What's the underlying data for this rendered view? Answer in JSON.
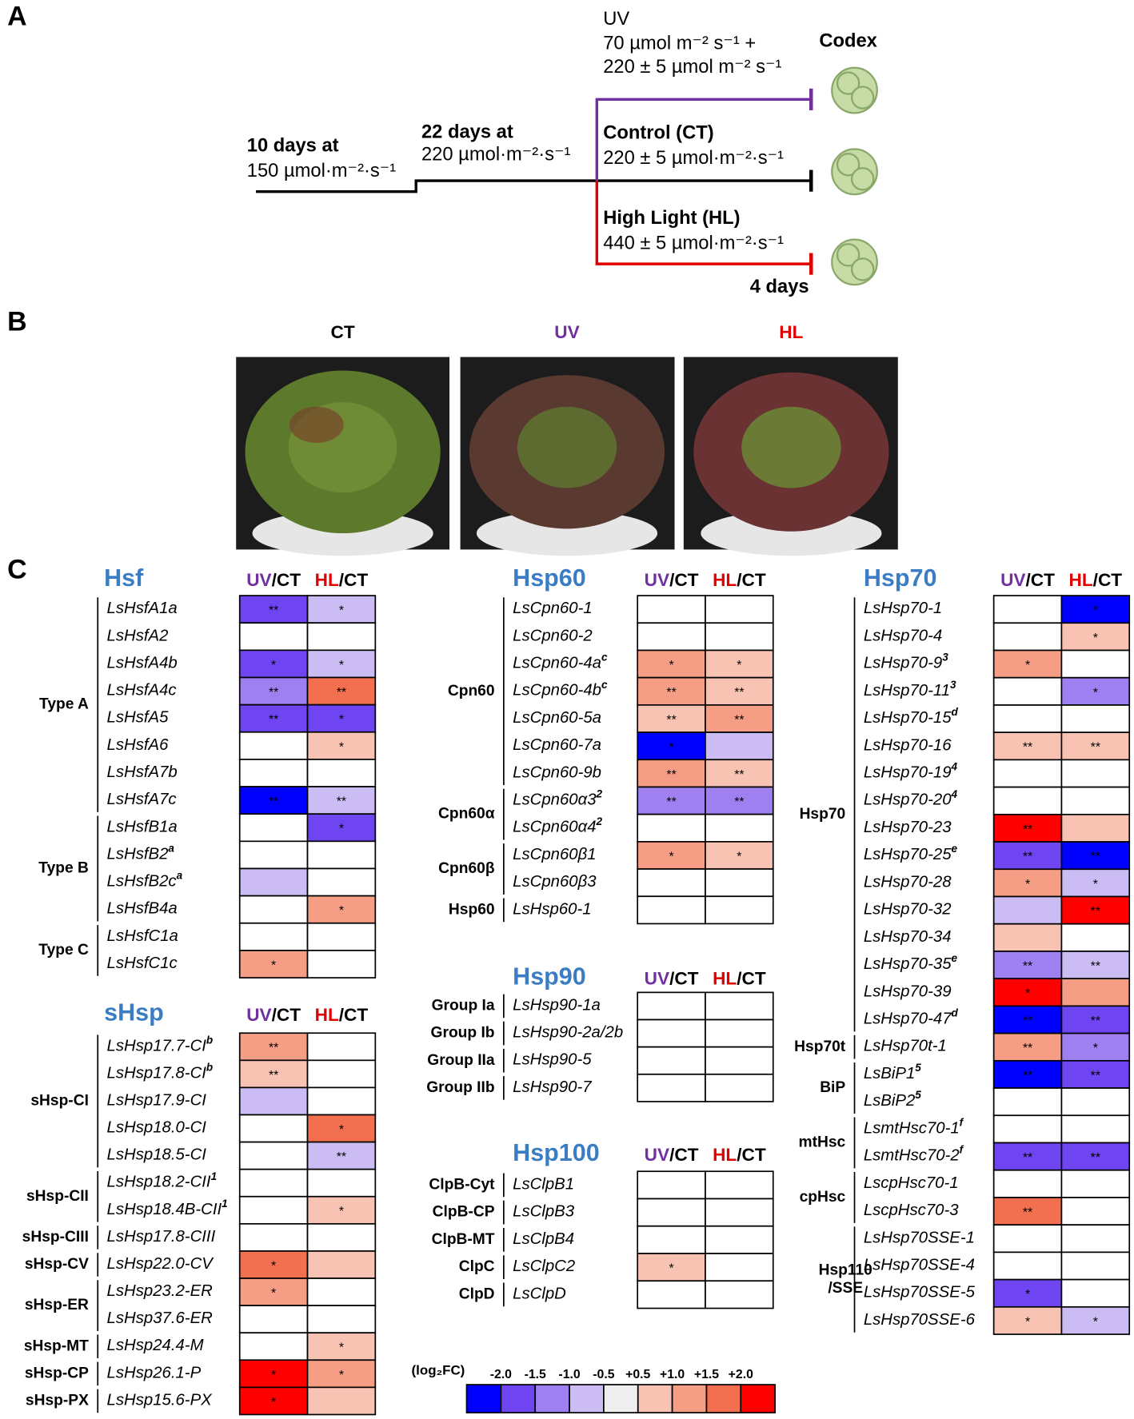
{
  "panel_a": {
    "letter": "A",
    "uv_title": "UV",
    "uv_line1": "70 µmol m⁻² s⁻¹ +",
    "uv_line2": "220 ± 5 µmol m⁻² s⁻¹",
    "codex": "Codex",
    "stage1_title": "10 days at",
    "stage1_value": "150 µmol·m⁻²·s⁻¹",
    "stage2_title": "22 days at",
    "stage2_value": "220 µmol·m⁻²·s⁻¹",
    "ct_title": "Control (CT)",
    "ct_value": "220 ± 5 µmol·m⁻²·s⁻¹",
    "hl_title": "High Light (HL)",
    "hl_value": "440 ± 5 µmol·m⁻²·s⁻¹",
    "duration": "4 days"
  },
  "panel_b": {
    "letter": "B",
    "labels": [
      "CT",
      "UV",
      "HL"
    ]
  },
  "panel_c": {
    "letter": "C",
    "uv": "UV",
    "hl": "HL",
    "ct_suffix": "/CT",
    "families": [
      {
        "name": "Hsf",
        "groups": [
          {
            "label": "Type A",
            "genes": [
              {
                "gene": "LsHsfA1a",
                "uv": -1.75,
                "uv_sig": "**",
                "hl": -0.75,
                "hl_sig": "*"
              },
              {
                "gene": "LsHsfA2",
                "uv": null,
                "hl": null
              },
              {
                "gene": "LsHsfA4b",
                "uv": -1.75,
                "uv_sig": "*",
                "hl": -0.75,
                "hl_sig": "*"
              },
              {
                "gene": "LsHsfA4c",
                "uv": -1.25,
                "uv_sig": "**",
                "hl": 1.75,
                "hl_sig": "**"
              },
              {
                "gene": "LsHsfA5",
                "uv": -1.75,
                "uv_sig": "**",
                "hl": -1.75,
                "hl_sig": "*"
              },
              {
                "gene": "LsHsfA6",
                "uv": null,
                "hl": 0.75,
                "hl_sig": "*"
              },
              {
                "gene": "LsHsfA7b",
                "uv": null,
                "hl": null
              },
              {
                "gene": "LsHsfA7c",
                "uv": -2.25,
                "uv_sig": "**",
                "hl": -0.75,
                "hl_sig": "**"
              }
            ]
          },
          {
            "label": "Type B",
            "genes": [
              {
                "gene": "LsHsfB1a",
                "uv": null,
                "hl": -1.75,
                "hl_sig": "*"
              },
              {
                "gene": "LsHsfB2",
                "sup": "a",
                "uv": null,
                "hl": null
              },
              {
                "gene": "LsHsfB2c",
                "sup": "a",
                "uv": -0.75,
                "hl": null
              },
              {
                "gene": "LsHsfB4a",
                "uv": null,
                "hl": 1.25,
                "hl_sig": "*"
              }
            ]
          },
          {
            "label": "Type C",
            "genes": [
              {
                "gene": "LsHsfC1a",
                "uv": null,
                "hl": null
              },
              {
                "gene": "LsHsfC1c",
                "uv": 1.25,
                "uv_sig": "*",
                "hl": null
              }
            ]
          }
        ]
      },
      {
        "name": "sHsp",
        "groups": [
          {
            "label": "sHsp-CI",
            "genes": [
              {
                "gene": "LsHsp17.7-CI",
                "sup": "b",
                "uv": 1.25,
                "uv_sig": "**",
                "hl": null
              },
              {
                "gene": "LsHsp17.8-CI",
                "sup": "b",
                "uv": 0.75,
                "uv_sig": "**",
                "hl": null
              },
              {
                "gene": "LsHsp17.9-CI",
                "uv": -0.75,
                "hl": null
              },
              {
                "gene": "LsHsp18.0-CI",
                "uv": null,
                "hl": 1.75,
                "hl_sig": "*"
              },
              {
                "gene": "LsHsp18.5-CI",
                "uv": null,
                "hl": -0.75,
                "hl_sig": "**"
              }
            ]
          },
          {
            "label": "sHsp-CII",
            "genes": [
              {
                "gene": "LsHsp18.2-CII",
                "sup": "1",
                "uv": null,
                "hl": null
              },
              {
                "gene": "LsHsp18.4B-CII",
                "sup": "1",
                "uv": null,
                "hl": 0.75,
                "hl_sig": "*"
              }
            ]
          },
          {
            "label": "sHsp-CIII",
            "genes": [
              {
                "gene": "LsHsp17.8-CIII",
                "uv": null,
                "hl": null
              }
            ]
          },
          {
            "label": "sHsp-CV",
            "genes": [
              {
                "gene": "LsHsp22.0-CV",
                "uv": 1.75,
                "uv_sig": "*",
                "hl": 0.75
              }
            ]
          },
          {
            "label": "sHsp-ER",
            "genes": [
              {
                "gene": "LsHsp23.2-ER",
                "uv": 1.25,
                "uv_sig": "*",
                "hl": null
              },
              {
                "gene": "LsHsp37.6-ER",
                "uv": null,
                "hl": null
              }
            ]
          },
          {
            "label": "sHsp-MT",
            "genes": [
              {
                "gene": "LsHsp24.4-M",
                "uv": null,
                "hl": 0.75,
                "hl_sig": "*"
              }
            ]
          },
          {
            "label": "sHsp-CP",
            "genes": [
              {
                "gene": "LsHsp26.1-P",
                "uv": 2.25,
                "uv_sig": "*",
                "hl": 1.25,
                "hl_sig": "*"
              }
            ]
          },
          {
            "label": "sHsp-PX",
            "genes": [
              {
                "gene": "LsHsp15.6-PX",
                "uv": 2.25,
                "uv_sig": "*",
                "hl": 0.75
              }
            ]
          }
        ]
      },
      {
        "name": "Hsp60",
        "groups": [
          {
            "label": "Cpn60",
            "genes": [
              {
                "gene": "LsCpn60-1",
                "uv": null,
                "hl": null
              },
              {
                "gene": "LsCpn60-2",
                "uv": null,
                "hl": null
              },
              {
                "gene": "LsCpn60-4a",
                "sup": "c",
                "uv": 1.25,
                "uv_sig": "*",
                "hl": 0.75,
                "hl_sig": "*"
              },
              {
                "gene": "LsCpn60-4b",
                "sup": "c",
                "uv": 1.25,
                "uv_sig": "**",
                "hl": 0.75,
                "hl_sig": "**"
              },
              {
                "gene": "LsCpn60-5a",
                "uv": 0.75,
                "uv_sig": "**",
                "hl": 1.25,
                "hl_sig": "**"
              },
              {
                "gene": "LsCpn60-7a",
                "uv": -2.25,
                "uv_sig": "*",
                "hl": -0.75
              },
              {
                "gene": "LsCpn60-9b",
                "uv": 1.25,
                "uv_sig": "**",
                "hl": 0.75,
                "hl_sig": "**"
              }
            ]
          },
          {
            "label": "Cpn60α",
            "genes": [
              {
                "gene": "LsCpn60α3",
                "sup": "2",
                "uv": -1.25,
                "uv_sig": "**",
                "hl": -1.25,
                "hl_sig": "**"
              },
              {
                "gene": "LsCpn60α4",
                "sup": "2",
                "uv": null,
                "hl": null
              }
            ]
          },
          {
            "label": "Cpn60β",
            "genes": [
              {
                "gene": "LsCpn60β1",
                "uv": 1.25,
                "uv_sig": "*",
                "hl": 0.75,
                "hl_sig": "*"
              },
              {
                "gene": "LsCpn60β3",
                "uv": null,
                "hl": null
              }
            ]
          },
          {
            "label": "Hsp60",
            "genes": [
              {
                "gene": "LsHsp60-1",
                "uv": null,
                "hl": null
              }
            ]
          }
        ]
      },
      {
        "name": "Hsp90",
        "groups": [
          {
            "label": "Group Ia",
            "genes": [
              {
                "gene": "LsHsp90-1a",
                "uv": null,
                "hl": null
              }
            ]
          },
          {
            "label": "Group Ib",
            "genes": [
              {
                "gene": "LsHsp90-2a/2b",
                "uv": null,
                "hl": null
              }
            ]
          },
          {
            "label": "Group IIa",
            "genes": [
              {
                "gene": "LsHsp90-5",
                "uv": null,
                "hl": null
              }
            ]
          },
          {
            "label": "Group IIb",
            "genes": [
              {
                "gene": "LsHsp90-7",
                "uv": null,
                "hl": null
              }
            ]
          }
        ]
      },
      {
        "name": "Hsp100",
        "groups": [
          {
            "label": "ClpB-Cyt",
            "genes": [
              {
                "gene": "LsClpB1",
                "uv": null,
                "hl": null
              }
            ]
          },
          {
            "label": "ClpB-CP",
            "genes": [
              {
                "gene": "LsClpB3",
                "uv": null,
                "hl": null
              }
            ]
          },
          {
            "label": "ClpB-MT",
            "genes": [
              {
                "gene": "LsClpB4",
                "uv": null,
                "hl": null
              }
            ]
          },
          {
            "label": "ClpC",
            "genes": [
              {
                "gene": "LsClpC2",
                "uv": 0.75,
                "uv_sig": "*",
                "hl": null
              }
            ]
          },
          {
            "label": "ClpD",
            "genes": [
              {
                "gene": "LsClpD",
                "uv": null,
                "hl": null
              }
            ]
          }
        ]
      },
      {
        "name": "Hsp70",
        "groups": [
          {
            "label": "Hsp70",
            "genes": [
              {
                "gene": "LsHsp70-1",
                "uv": null,
                "hl": -2.25,
                "hl_sig": "*"
              },
              {
                "gene": "LsHsp70-4",
                "uv": null,
                "hl": 0.75,
                "hl_sig": "*"
              },
              {
                "gene": "LsHsp70-9",
                "sup": "3",
                "uv": 1.25,
                "uv_sig": "*",
                "hl": null
              },
              {
                "gene": "LsHsp70-11",
                "sup": "3",
                "uv": null,
                "hl": -1.25,
                "hl_sig": "*"
              },
              {
                "gene": "LsHsp70-15",
                "sup": "d",
                "uv": null,
                "hl": null
              },
              {
                "gene": "LsHsp70-16",
                "uv": 0.75,
                "uv_sig": "**",
                "hl": 0.75,
                "hl_sig": "**"
              },
              {
                "gene": "LsHsp70-19",
                "sup": "4",
                "uv": null,
                "hl": null
              },
              {
                "gene": "LsHsp70-20",
                "sup": "4",
                "uv": null,
                "hl": null
              },
              {
                "gene": "LsHsp70-23",
                "uv": 2.25,
                "uv_sig": "**",
                "hl": 0.75
              },
              {
                "gene": "LsHsp70-25",
                "sup": "e",
                "uv": -1.75,
                "uv_sig": "**",
                "hl": -2.25,
                "hl_sig": "**"
              },
              {
                "gene": "LsHsp70-28",
                "uv": 1.25,
                "uv_sig": "*",
                "hl": -0.75,
                "hl_sig": "*"
              },
              {
                "gene": "LsHsp70-32",
                "uv": -0.75,
                "hl": 2.25,
                "hl_sig": "**"
              },
              {
                "gene": "LsHsp70-34",
                "uv": 0.75,
                "hl": null
              },
              {
                "gene": "LsHsp70-35",
                "sup": "e",
                "uv": -1.25,
                "uv_sig": "**",
                "hl": -0.75,
                "hl_sig": "**"
              },
              {
                "gene": "LsHsp70-39",
                "uv": 2.25,
                "uv_sig": "*",
                "hl": 1.25
              },
              {
                "gene": "LsHsp70-47",
                "sup": "d",
                "uv": -2.25,
                "uv_sig": "**",
                "hl": -1.75,
                "hl_sig": "**"
              }
            ]
          },
          {
            "label": "Hsp70t",
            "genes": [
              {
                "gene": "LsHsp70t-1",
                "uv": 1.25,
                "uv_sig": "**",
                "hl": -1.25,
                "hl_sig": "*"
              }
            ]
          },
          {
            "label": "BiP",
            "genes": [
              {
                "gene": "LsBiP1",
                "sup": "5",
                "uv": -2.25,
                "uv_sig": "**",
                "hl": -1.75,
                "hl_sig": "**"
              },
              {
                "gene": "LsBiP2",
                "sup": "5",
                "uv": null,
                "hl": null
              }
            ]
          },
          {
            "label": "mtHsc",
            "genes": [
              {
                "gene": "LsmtHsc70-1",
                "sup": "f",
                "uv": null,
                "hl": null
              },
              {
                "gene": "LsmtHsc70-2",
                "sup": "f",
                "uv": -1.75,
                "uv_sig": "**",
                "hl": -1.75,
                "hl_sig": "**"
              }
            ]
          },
          {
            "label": "cpHsc",
            "genes": [
              {
                "gene": "LscpHsc70-1",
                "uv": null,
                "hl": null
              },
              {
                "gene": "LscpHsc70-3",
                "uv": 1.75,
                "uv_sig": "**",
                "hl": null
              }
            ]
          },
          {
            "label": [
              "Hsp110",
              "/SSE"
            ],
            "genes": [
              {
                "gene": "LsHsp70SSE-1",
                "uv": null,
                "hl": null
              },
              {
                "gene": "LsHsp70SSE-4",
                "uv": null,
                "hl": null
              },
              {
                "gene": "LsHsp70SSE-5",
                "uv": -1.75,
                "uv_sig": "*",
                "hl": null
              },
              {
                "gene": "LsHsp70SSE-6",
                "uv": 0.75,
                "uv_sig": "*",
                "hl": -0.75,
                "hl_sig": "*"
              }
            ]
          }
        ]
      }
    ],
    "legend": {
      "label": "(log₂FC)",
      "ticks": [
        {
          "value": -2,
          "label": "-2.0"
        },
        {
          "value": -1.5,
          "label": "-1.5"
        },
        {
          "value": -1,
          "label": "-1.0"
        },
        {
          "value": -0.5,
          "label": "-0.5"
        },
        {
          "value": 0.5,
          "label": "+0.5"
        },
        {
          "value": 1,
          "label": "+1.0"
        },
        {
          "value": 1.5,
          "label": "+1.5"
        },
        {
          "value": 2,
          "label": "+2.0"
        }
      ],
      "colors": [
        "#0000ff",
        "#6f45f2",
        "#9e80f0",
        "#cbbdf3",
        "#eeeeee",
        "#f8c3b3",
        "#f59e85",
        "#f27050",
        "#ff0000"
      ]
    }
  }
}
